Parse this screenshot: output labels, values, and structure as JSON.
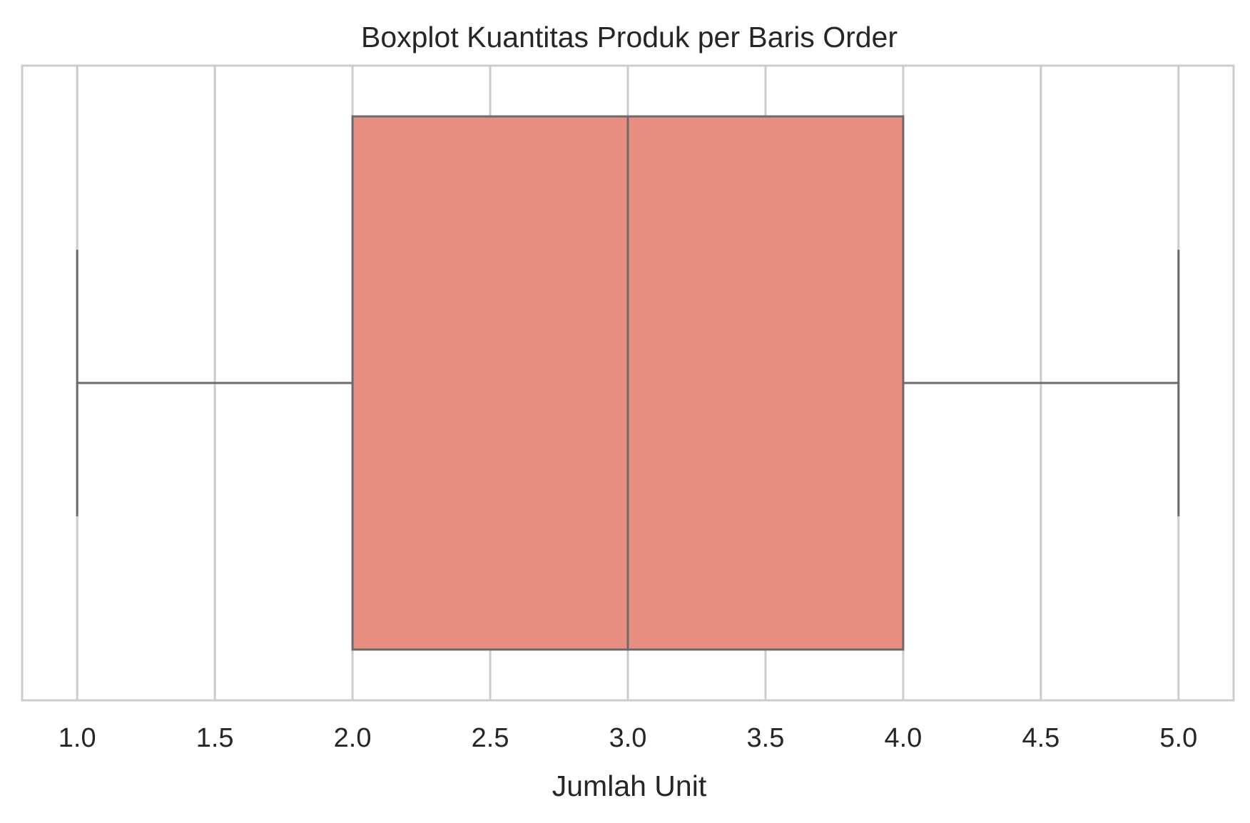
{
  "chart_data": {
    "type": "boxplot",
    "orientation": "horizontal",
    "title": "Boxplot Kuantitas Produk per Baris Order",
    "xlabel": "Jumlah Unit",
    "ylabel": "",
    "xlim": [
      0.8,
      5.2
    ],
    "xticks": [
      1.0,
      1.5,
      2.0,
      2.5,
      3.0,
      3.5,
      4.0,
      4.5,
      5.0
    ],
    "xtick_labels": [
      "1.0",
      "1.5",
      "2.0",
      "2.5",
      "3.0",
      "3.5",
      "4.0",
      "4.5",
      "5.0"
    ],
    "grid": true,
    "box": {
      "whisker_low": 1.0,
      "q1": 2.0,
      "median": 3.0,
      "q3": 4.0,
      "whisker_high": 5.0
    },
    "colors": {
      "box_fill": "#e88e83",
      "line": "#6b6b6b",
      "grid": "#cccccc",
      "frame": "#cccccc",
      "text": "#262626"
    }
  }
}
